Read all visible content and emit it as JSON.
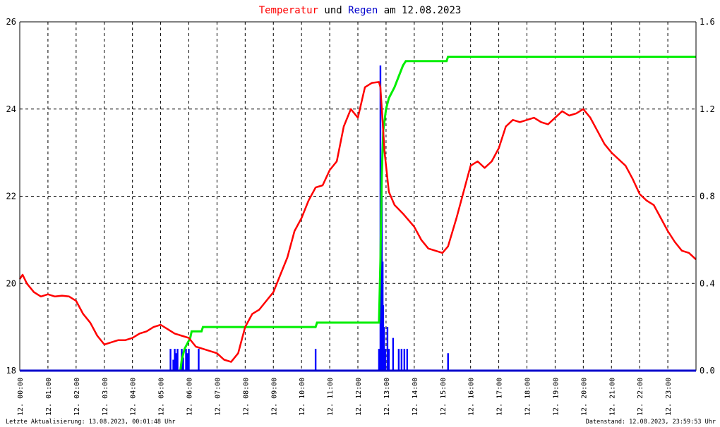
{
  "title": {
    "part1": "Temperatur",
    "part2": " und ",
    "part3": "Regen",
    "part4": " am 12.08.2023",
    "color1": "#ff0000",
    "color3": "#0000cc"
  },
  "footer": {
    "left": "Letzte Aktualisierung: 13.08.2023, 00:01:48 Uhr",
    "right": "Datenstand: 12.08.2023, 23:59:53 Uhr"
  },
  "chart_data": {
    "type": "line",
    "grid": true,
    "colors": {
      "temperature": "#ff0000",
      "rain_bars": "#0000ff",
      "rain_cumulative": "#00ee00",
      "axis": "#000000"
    },
    "x_range_hours": [
      0,
      24
    ],
    "x_tick_labels": [
      "12. 00:00",
      "12. 01:00",
      "12. 02:00",
      "12. 03:00",
      "12. 04:00",
      "12. 05:00",
      "12. 06:00",
      "12. 07:00",
      "12. 08:00",
      "12. 09:00",
      "12. 10:00",
      "12. 11:00",
      "12. 12:00",
      "12. 13:00",
      "12. 14:00",
      "12. 15:00",
      "12. 16:00",
      "12. 17:00",
      "12. 18:00",
      "12. 19:00",
      "12. 20:00",
      "12. 21:00",
      "12. 22:00",
      "12. 23:00"
    ],
    "y_left": {
      "range": [
        18,
        26
      ],
      "ticks": [
        "18",
        "20",
        "22",
        "24",
        "26"
      ]
    },
    "y_right": {
      "range": [
        0,
        1.6
      ],
      "ticks": [
        "0.0",
        "0.4",
        "0.8",
        "1.2",
        "1.6"
      ]
    },
    "temperature": [
      [
        0.0,
        20.1
      ],
      [
        0.1,
        20.2
      ],
      [
        0.25,
        20.0
      ],
      [
        0.5,
        19.8
      ],
      [
        0.75,
        19.7
      ],
      [
        1.0,
        19.75
      ],
      [
        1.25,
        19.7
      ],
      [
        1.5,
        19.72
      ],
      [
        1.75,
        19.7
      ],
      [
        2.0,
        19.6
      ],
      [
        2.25,
        19.3
      ],
      [
        2.5,
        19.1
      ],
      [
        2.75,
        18.8
      ],
      [
        3.0,
        18.6
      ],
      [
        3.25,
        18.65
      ],
      [
        3.5,
        18.7
      ],
      [
        3.75,
        18.7
      ],
      [
        4.0,
        18.75
      ],
      [
        4.25,
        18.85
      ],
      [
        4.5,
        18.9
      ],
      [
        4.75,
        19.0
      ],
      [
        5.0,
        19.05
      ],
      [
        5.25,
        18.95
      ],
      [
        5.5,
        18.85
      ],
      [
        5.75,
        18.8
      ],
      [
        6.0,
        18.75
      ],
      [
        6.25,
        18.55
      ],
      [
        6.5,
        18.5
      ],
      [
        6.75,
        18.45
      ],
      [
        7.0,
        18.4
      ],
      [
        7.25,
        18.25
      ],
      [
        7.5,
        18.2
      ],
      [
        7.75,
        18.4
      ],
      [
        8.0,
        19.0
      ],
      [
        8.25,
        19.3
      ],
      [
        8.5,
        19.4
      ],
      [
        8.75,
        19.6
      ],
      [
        9.0,
        19.8
      ],
      [
        9.25,
        20.2
      ],
      [
        9.5,
        20.6
      ],
      [
        9.75,
        21.2
      ],
      [
        10.0,
        21.5
      ],
      [
        10.25,
        21.9
      ],
      [
        10.5,
        22.2
      ],
      [
        10.75,
        22.25
      ],
      [
        11.0,
        22.6
      ],
      [
        11.25,
        22.8
      ],
      [
        11.5,
        23.6
      ],
      [
        11.75,
        24.0
      ],
      [
        12.0,
        23.8
      ],
      [
        12.25,
        24.5
      ],
      [
        12.5,
        24.6
      ],
      [
        12.75,
        24.62
      ],
      [
        12.8,
        24.5
      ],
      [
        12.95,
        23.0
      ],
      [
        13.1,
        22.1
      ],
      [
        13.3,
        21.8
      ],
      [
        13.6,
        21.6
      ],
      [
        14.0,
        21.3
      ],
      [
        14.25,
        21.0
      ],
      [
        14.5,
        20.8
      ],
      [
        14.75,
        20.75
      ],
      [
        15.0,
        20.7
      ],
      [
        15.2,
        20.85
      ],
      [
        15.5,
        21.5
      ],
      [
        15.75,
        22.1
      ],
      [
        16.0,
        22.7
      ],
      [
        16.25,
        22.8
      ],
      [
        16.5,
        22.65
      ],
      [
        16.75,
        22.8
      ],
      [
        17.0,
        23.1
      ],
      [
        17.25,
        23.6
      ],
      [
        17.5,
        23.75
      ],
      [
        17.75,
        23.7
      ],
      [
        18.0,
        23.75
      ],
      [
        18.25,
        23.8
      ],
      [
        18.5,
        23.7
      ],
      [
        18.75,
        23.65
      ],
      [
        19.0,
        23.8
      ],
      [
        19.25,
        23.95
      ],
      [
        19.5,
        23.85
      ],
      [
        19.75,
        23.9
      ],
      [
        20.0,
        24.0
      ],
      [
        20.25,
        23.8
      ],
      [
        20.5,
        23.5
      ],
      [
        20.75,
        23.2
      ],
      [
        21.0,
        23.0
      ],
      [
        21.25,
        22.85
      ],
      [
        21.5,
        22.7
      ],
      [
        21.75,
        22.4
      ],
      [
        22.0,
        22.05
      ],
      [
        22.25,
        21.9
      ],
      [
        22.5,
        21.8
      ],
      [
        22.75,
        21.5
      ],
      [
        23.0,
        21.2
      ],
      [
        23.25,
        20.95
      ],
      [
        23.5,
        20.75
      ],
      [
        23.75,
        20.7
      ],
      [
        24.0,
        20.55
      ]
    ],
    "rain_cumulative": [
      [
        5.2,
        0.0
      ],
      [
        5.7,
        0.0
      ],
      [
        5.75,
        0.05
      ],
      [
        5.85,
        0.1
      ],
      [
        6.05,
        0.15
      ],
      [
        6.1,
        0.18
      ],
      [
        6.45,
        0.18
      ],
      [
        6.5,
        0.2
      ],
      [
        10.5,
        0.2
      ],
      [
        10.55,
        0.22
      ],
      [
        12.75,
        0.22
      ],
      [
        12.8,
        0.5
      ],
      [
        12.85,
        0.9
      ],
      [
        12.9,
        1.1
      ],
      [
        13.0,
        1.2
      ],
      [
        13.1,
        1.25
      ],
      [
        13.3,
        1.3
      ],
      [
        13.45,
        1.35
      ],
      [
        13.6,
        1.4
      ],
      [
        13.7,
        1.42
      ],
      [
        15.15,
        1.42
      ],
      [
        15.2,
        1.44
      ],
      [
        24.0,
        1.44
      ]
    ],
    "rain_bars": [
      [
        5.35,
        0.1
      ],
      [
        5.45,
        0.05
      ],
      [
        5.5,
        0.1
      ],
      [
        5.55,
        0.08
      ],
      [
        5.6,
        0.1
      ],
      [
        5.75,
        0.1
      ],
      [
        5.8,
        0.06
      ],
      [
        5.9,
        0.1
      ],
      [
        5.95,
        0.08
      ],
      [
        6.0,
        0.1
      ],
      [
        6.35,
        0.1
      ],
      [
        10.5,
        0.1
      ],
      [
        12.75,
        0.1
      ],
      [
        12.8,
        1.4
      ],
      [
        12.83,
        0.6
      ],
      [
        12.85,
        0.8
      ],
      [
        12.88,
        0.5
      ],
      [
        12.9,
        0.3
      ],
      [
        12.93,
        0.2
      ],
      [
        12.97,
        0.1
      ],
      [
        13.05,
        0.2
      ],
      [
        13.1,
        0.1
      ],
      [
        13.25,
        0.15
      ],
      [
        13.45,
        0.1
      ],
      [
        13.55,
        0.1
      ],
      [
        13.65,
        0.1
      ],
      [
        13.75,
        0.1
      ],
      [
        15.2,
        0.08
      ]
    ]
  }
}
